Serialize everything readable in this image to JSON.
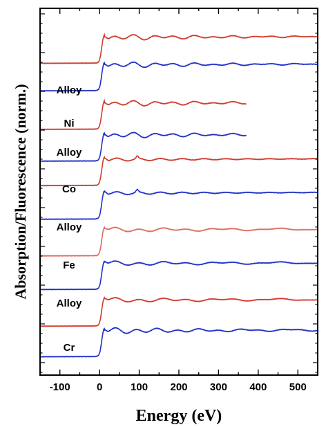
{
  "chart_data": {
    "type": "line",
    "title": "",
    "xlabel": "Energy (eV)",
    "ylabel": "Absorption/Fluorescence (norm.)",
    "xlim": [
      -150,
      550
    ],
    "x_ticks": [
      -100,
      0,
      100,
      200,
      300,
      400,
      500
    ],
    "grid": false,
    "y_ticks_labeled": false,
    "series": [
      {
        "name": "Ni",
        "color": "#d13a2e",
        "offset": 4.9,
        "kind": "ni",
        "xmax": 550
      },
      {
        "name": "Alloy",
        "color": "#1f2fc4",
        "offset": 4.45,
        "kind": "ni",
        "xmax": 550
      },
      {
        "name": "",
        "color": "#d13a2e",
        "offset": 3.82,
        "kind": "ni",
        "xmax": 370
      },
      {
        "name": "",
        "color": "#1f2fc4",
        "offset": 3.3,
        "kind": "ni",
        "xmax": 370
      },
      {
        "name": "Co",
        "color": "#d13a2e",
        "offset": 2.9,
        "kind": "co",
        "xmax": 550
      },
      {
        "name": "Alloy",
        "color": "#1f2fc4",
        "offset": 2.35,
        "kind": "co",
        "xmax": 550
      },
      {
        "name": "Fe",
        "color": "#e06a5e",
        "offset": 1.75,
        "kind": "fe",
        "xmax": 550
      },
      {
        "name": "Alloy",
        "color": "#1f2fc4",
        "offset": 1.2,
        "kind": "fe",
        "xmax": 550
      },
      {
        "name": "",
        "color": "#d13a2e",
        "offset": 0.6,
        "kind": "fe",
        "xmax": 550
      },
      {
        "name": "",
        "color": "#1f2fc4",
        "offset": 0.1,
        "kind": "cr",
        "xmax": 550
      }
    ],
    "trace_labels": [
      "Alloy",
      "Ni",
      "Alloy",
      "Co",
      "Alloy",
      "Fe",
      "Alloy",
      "Cr"
    ]
  }
}
